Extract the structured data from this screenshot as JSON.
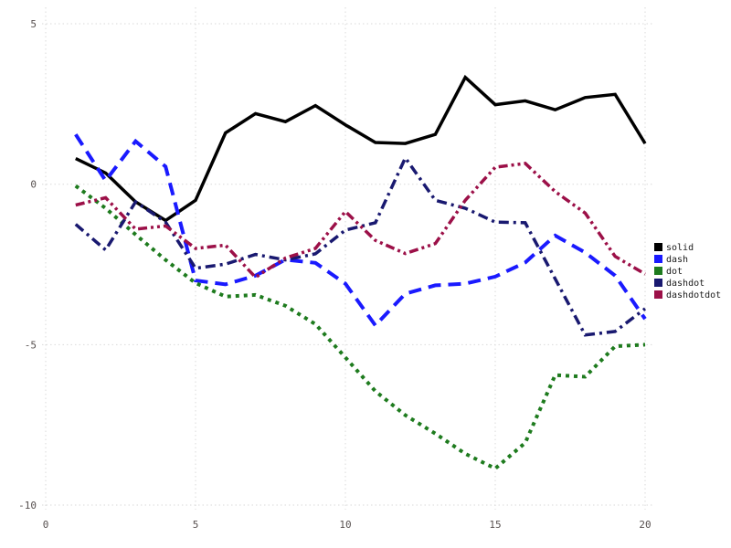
{
  "page": {
    "background_color": "#ffffff",
    "grid_color": "#d9d9d9",
    "tick_label_color": "#57504f",
    "legend_text_color": "#1a1a1a"
  },
  "chart_data": {
    "type": "line",
    "title": "",
    "xlabel": "",
    "ylabel": "",
    "grid": "dotted",
    "legend_position": "right-middle",
    "xlim": [
      0,
      20.3
    ],
    "ylim": [
      -10.4,
      5.5
    ],
    "xticks": [
      "0",
      "5",
      "10",
      "15",
      "20"
    ],
    "xtick_values": [
      0,
      5,
      10,
      15,
      20
    ],
    "yticks": [
      "5",
      "0",
      "-5",
      "-10"
    ],
    "ytick_values": [
      5,
      0,
      -5,
      -10
    ],
    "x": [
      1,
      2,
      3,
      4,
      5,
      6,
      7,
      8,
      9,
      10,
      11,
      12,
      13,
      14,
      15,
      16,
      17,
      18,
      19,
      20
    ],
    "series": [
      {
        "name": "solid",
        "color": "#000000",
        "dash_style": "solid",
        "values": [
          0.8,
          0.35,
          -0.55,
          -1.13,
          -0.5,
          1.6,
          2.2,
          1.95,
          2.45,
          1.85,
          1.3,
          1.27,
          1.55,
          3.33,
          2.48,
          2.6,
          2.32,
          2.7,
          2.8,
          1.27
        ]
      },
      {
        "name": "dash",
        "color": "#1a1aff",
        "dash_style": "dash",
        "values": [
          1.55,
          0.11,
          1.34,
          0.55,
          -3.0,
          -3.12,
          -2.85,
          -2.35,
          -2.45,
          -3.1,
          -4.4,
          -3.41,
          -3.15,
          -3.1,
          -2.88,
          -2.44,
          -1.6,
          -2.13,
          -2.85,
          -4.2
        ]
      },
      {
        "name": "dot",
        "color": "#1e7b1e",
        "dash_style": "dot",
        "values": [
          -0.05,
          -0.75,
          -1.57,
          -2.36,
          -3.08,
          -3.5,
          -3.45,
          -3.79,
          -4.36,
          -5.4,
          -6.45,
          -7.2,
          -7.77,
          -8.4,
          -8.86,
          -8.06,
          -5.95,
          -6.0,
          -5.05,
          -5.0
        ]
      },
      {
        "name": "dashdot",
        "color": "#191970",
        "dash_style": "dashdot",
        "values": [
          -1.25,
          -2.05,
          -0.55,
          -1.18,
          -2.62,
          -2.49,
          -2.19,
          -2.36,
          -2.17,
          -1.43,
          -1.2,
          0.82,
          -0.5,
          -0.75,
          -1.18,
          -1.2,
          -2.95,
          -4.7,
          -4.59,
          -3.88
        ]
      },
      {
        "name": "dashdotdot",
        "color": "#9c1048",
        "dash_style": "dashdotdot",
        "values": [
          -0.65,
          -0.42,
          -1.4,
          -1.3,
          -2.0,
          -1.9,
          -2.9,
          -2.3,
          -2.0,
          -0.85,
          -1.75,
          -2.16,
          -1.85,
          -0.5,
          0.53,
          0.65,
          -0.23,
          -0.9,
          -2.25,
          -2.8
        ]
      }
    ],
    "legend": [
      "solid",
      "dash",
      "dot",
      "dashdot",
      "dashdotdot"
    ]
  }
}
